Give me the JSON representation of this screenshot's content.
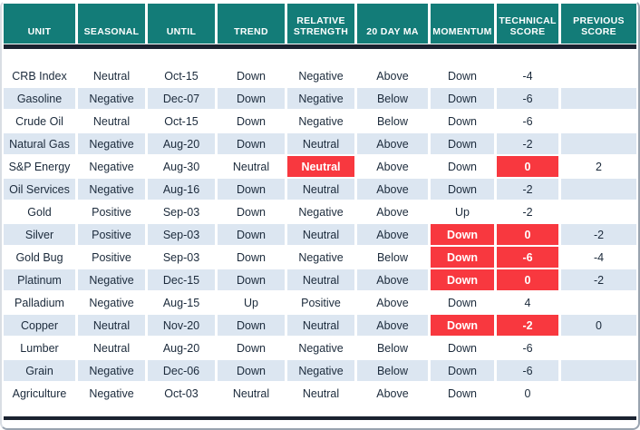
{
  "chart_data": {
    "type": "table",
    "columns": [
      {
        "id": "unit",
        "label": "UNIT"
      },
      {
        "id": "seasonal",
        "label": "SEASONAL"
      },
      {
        "id": "until",
        "label": "UNTIL"
      },
      {
        "id": "trend",
        "label": "TREND"
      },
      {
        "id": "relative-strength",
        "label": "RELATIVE STRENGTH"
      },
      {
        "id": "20-day-ma",
        "label": "20 DAY MA"
      },
      {
        "id": "momentum",
        "label": "MOMENTUM"
      },
      {
        "id": "technical-score",
        "label": "TECHNICAL SCORE"
      },
      {
        "id": "previous-score",
        "label": "PREVIOUS SCORE"
      }
    ],
    "rows": [
      {
        "cells": [
          "CRB Index",
          "Neutral",
          "Oct-15",
          "Down",
          "Negative",
          "Above",
          "Down",
          "-4",
          ""
        ],
        "red": []
      },
      {
        "cells": [
          "Gasoline",
          "Negative",
          "Dec-07",
          "Down",
          "Negative",
          "Below",
          "Down",
          "-6",
          ""
        ],
        "red": []
      },
      {
        "cells": [
          "Crude Oil",
          "Neutral",
          "Oct-15",
          "Down",
          "Negative",
          "Below",
          "Down",
          "-6",
          ""
        ],
        "red": []
      },
      {
        "cells": [
          "Natural Gas",
          "Negative",
          "Aug-20",
          "Down",
          "Neutral",
          "Above",
          "Down",
          "-2",
          ""
        ],
        "red": []
      },
      {
        "cells": [
          "S&P Energy",
          "Negative",
          "Aug-30",
          "Neutral",
          "Neutral",
          "Above",
          "Down",
          "0",
          "2"
        ],
        "red": [
          4,
          7
        ]
      },
      {
        "cells": [
          "Oil Services",
          "Negative",
          "Aug-16",
          "Down",
          "Neutral",
          "Above",
          "Down",
          "-2",
          ""
        ],
        "red": []
      },
      {
        "cells": [
          "Gold",
          "Positive",
          "Sep-03",
          "Down",
          "Negative",
          "Above",
          "Up",
          "-2",
          ""
        ],
        "red": []
      },
      {
        "cells": [
          "Silver",
          "Positive",
          "Sep-03",
          "Down",
          "Neutral",
          "Above",
          "Down",
          "0",
          "-2"
        ],
        "red": [
          6,
          7
        ]
      },
      {
        "cells": [
          "Gold Bug",
          "Positive",
          "Sep-03",
          "Down",
          "Negative",
          "Below",
          "Down",
          "-6",
          "-4"
        ],
        "red": [
          6,
          7
        ]
      },
      {
        "cells": [
          "Platinum",
          "Negative",
          "Dec-15",
          "Down",
          "Neutral",
          "Above",
          "Down",
          "0",
          "-2"
        ],
        "red": [
          6,
          7
        ]
      },
      {
        "cells": [
          "Palladium",
          "Negative",
          "Aug-15",
          "Up",
          "Positive",
          "Above",
          "Down",
          "4",
          ""
        ],
        "red": []
      },
      {
        "cells": [
          "Copper",
          "Neutral",
          "Nov-20",
          "Down",
          "Neutral",
          "Above",
          "Down",
          "-2",
          "0"
        ],
        "red": [
          6,
          7
        ]
      },
      {
        "cells": [
          "Lumber",
          "Neutral",
          "Aug-20",
          "Down",
          "Negative",
          "Below",
          "Down",
          "-6",
          ""
        ],
        "red": []
      },
      {
        "cells": [
          "Grain",
          "Negative",
          "Dec-06",
          "Down",
          "Negative",
          "Below",
          "Down",
          "-6",
          ""
        ],
        "red": []
      },
      {
        "cells": [
          "Agriculture",
          "Negative",
          "Oct-03",
          "Neutral",
          "Neutral",
          "Above",
          "Down",
          "0",
          ""
        ],
        "red": []
      }
    ]
  },
  "colors": {
    "header_bg": "#137c78",
    "row_alt_bg": "#dce6f1",
    "highlight_bg": "#f8383f",
    "header_text": "#ffffff",
    "body_text": "#1b2a3b",
    "divider": "#1a2230"
  }
}
